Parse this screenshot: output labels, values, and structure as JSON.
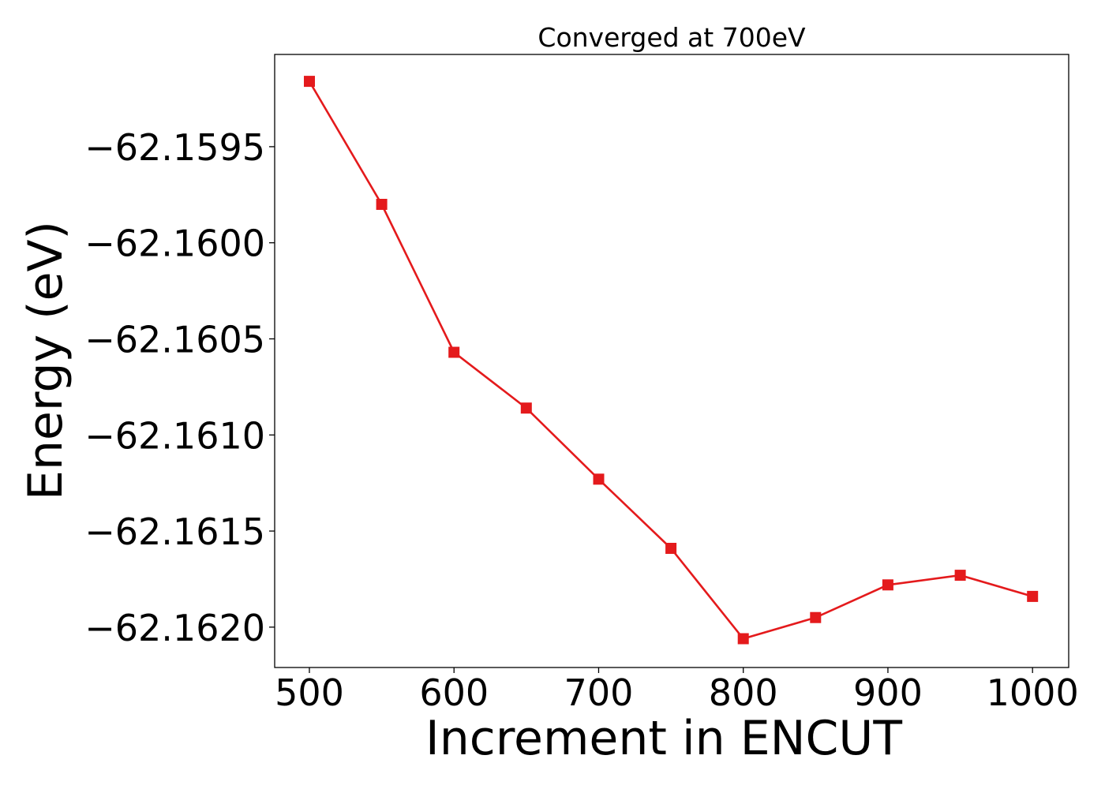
{
  "chart_data": {
    "type": "line",
    "title": "Converged at 700eV",
    "xlabel": "Increment in ENCUT",
    "ylabel": "Energy (eV)",
    "x": [
      500,
      550,
      600,
      650,
      700,
      750,
      800,
      850,
      900,
      950,
      1000
    ],
    "series": [
      {
        "values": [
          -62.15916,
          -62.1598,
          -62.16057,
          -62.16086,
          -62.16123,
          -62.16159,
          -62.16206,
          -62.16195,
          -62.16178,
          -62.16173,
          -62.16184
        ],
        "color": "#e41a1c",
        "marker": "square"
      }
    ],
    "xlim": [
      476,
      1025
    ],
    "ylim": [
      -62.16221,
      -62.15902
    ],
    "xticks": [
      500,
      600,
      700,
      800,
      900,
      1000
    ],
    "xtick_labels": [
      "500",
      "600",
      "700",
      "800",
      "900",
      "1000"
    ],
    "yticks": [
      -62.1595,
      -62.16,
      -62.1605,
      -62.161,
      -62.1615,
      -62.162
    ],
    "ytick_labels": [
      "−62.1595",
      "−62.1600",
      "−62.1605",
      "−62.1610",
      "−62.1615",
      "−62.1620"
    ],
    "grid": false,
    "legend": false
  }
}
